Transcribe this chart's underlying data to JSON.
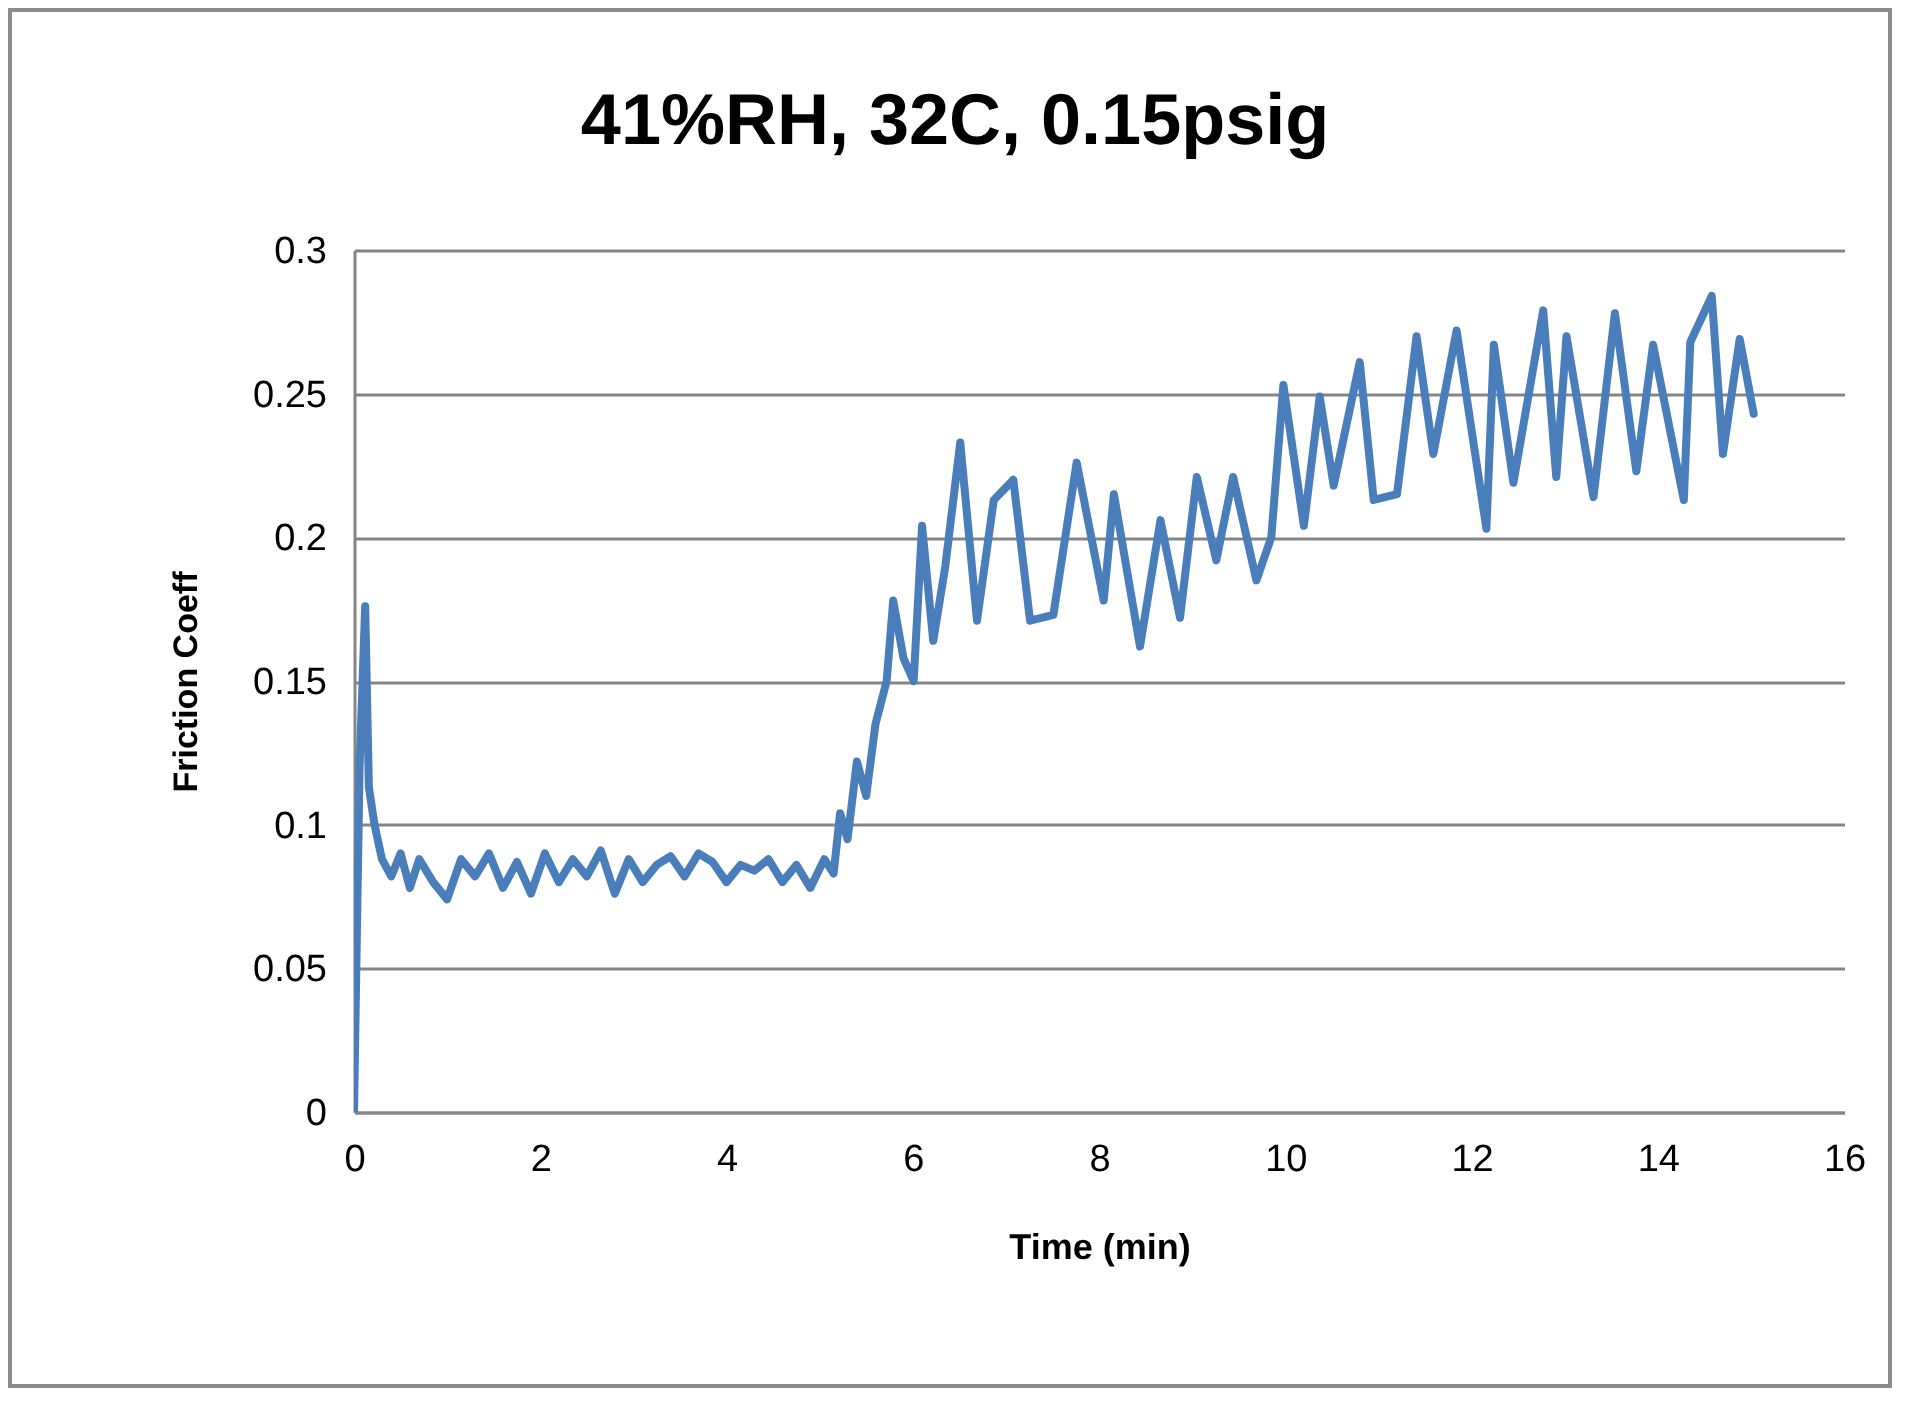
{
  "chart_data": {
    "type": "line",
    "title": "41%RH, 32C, 0.15psig",
    "xlabel": "Time (min)",
    "ylabel": "Friction Coeff",
    "xlim": [
      0,
      16
    ],
    "xticks": [
      0,
      2,
      4,
      6,
      8,
      10,
      12,
      14,
      16
    ],
    "ylim": [
      0,
      0.3
    ],
    "yticks": [
      0,
      0.05,
      0.1,
      0.15,
      0.2,
      0.25,
      0.3
    ],
    "grid": "y",
    "line_style": "solid",
    "marker": "none",
    "series": [
      {
        "color": "#4a7ebb",
        "x": [
          0,
          0.06,
          0.12,
          0.16,
          0.22,
          0.3,
          0.4,
          0.5,
          0.6,
          0.7,
          0.85,
          1.0,
          1.15,
          1.3,
          1.45,
          1.6,
          1.75,
          1.9,
          2.05,
          2.2,
          2.35,
          2.5,
          2.65,
          2.8,
          2.95,
          3.1,
          3.25,
          3.4,
          3.55,
          3.7,
          3.85,
          4.0,
          4.15,
          4.3,
          4.45,
          4.6,
          4.75,
          4.9,
          5.05,
          5.15,
          5.22,
          5.3,
          5.4,
          5.5,
          5.6,
          5.72,
          5.79,
          5.9,
          6.01,
          6.1,
          6.22,
          6.35,
          6.51,
          6.69,
          6.87,
          7.08,
          7.26,
          7.51,
          7.76,
          8.05,
          8.16,
          8.44,
          8.66,
          8.87,
          9.05,
          9.26,
          9.44,
          9.69,
          9.85,
          9.98,
          10.2,
          10.37,
          10.52,
          10.8,
          10.95,
          11.2,
          11.41,
          11.59,
          11.84,
          12.16,
          12.24,
          12.45,
          12.77,
          12.91,
          13.02,
          13.31,
          13.54,
          13.77,
          13.95,
          14.28,
          14.35,
          14.58,
          14.7,
          14.88,
          15.03
        ],
        "values": [
          0,
          0.12,
          0.176,
          0.113,
          0.1,
          0.088,
          0.082,
          0.09,
          0.078,
          0.088,
          0.08,
          0.074,
          0.088,
          0.082,
          0.09,
          0.078,
          0.087,
          0.076,
          0.09,
          0.08,
          0.088,
          0.082,
          0.091,
          0.076,
          0.088,
          0.08,
          0.086,
          0.089,
          0.082,
          0.09,
          0.087,
          0.08,
          0.086,
          0.084,
          0.088,
          0.08,
          0.086,
          0.078,
          0.088,
          0.083,
          0.104,
          0.095,
          0.122,
          0.11,
          0.135,
          0.15,
          0.178,
          0.158,
          0.15,
          0.204,
          0.164,
          0.19,
          0.233,
          0.171,
          0.213,
          0.22,
          0.171,
          0.173,
          0.226,
          0.178,
          0.215,
          0.162,
          0.206,
          0.172,
          0.221,
          0.192,
          0.221,
          0.185,
          0.2,
          0.253,
          0.204,
          0.249,
          0.218,
          0.261,
          0.213,
          0.215,
          0.27,
          0.229,
          0.272,
          0.203,
          0.267,
          0.219,
          0.279,
          0.221,
          0.27,
          0.214,
          0.278,
          0.223,
          0.267,
          0.213,
          0.268,
          0.284,
          0.229,
          0.269,
          0.243
        ]
      }
    ]
  }
}
